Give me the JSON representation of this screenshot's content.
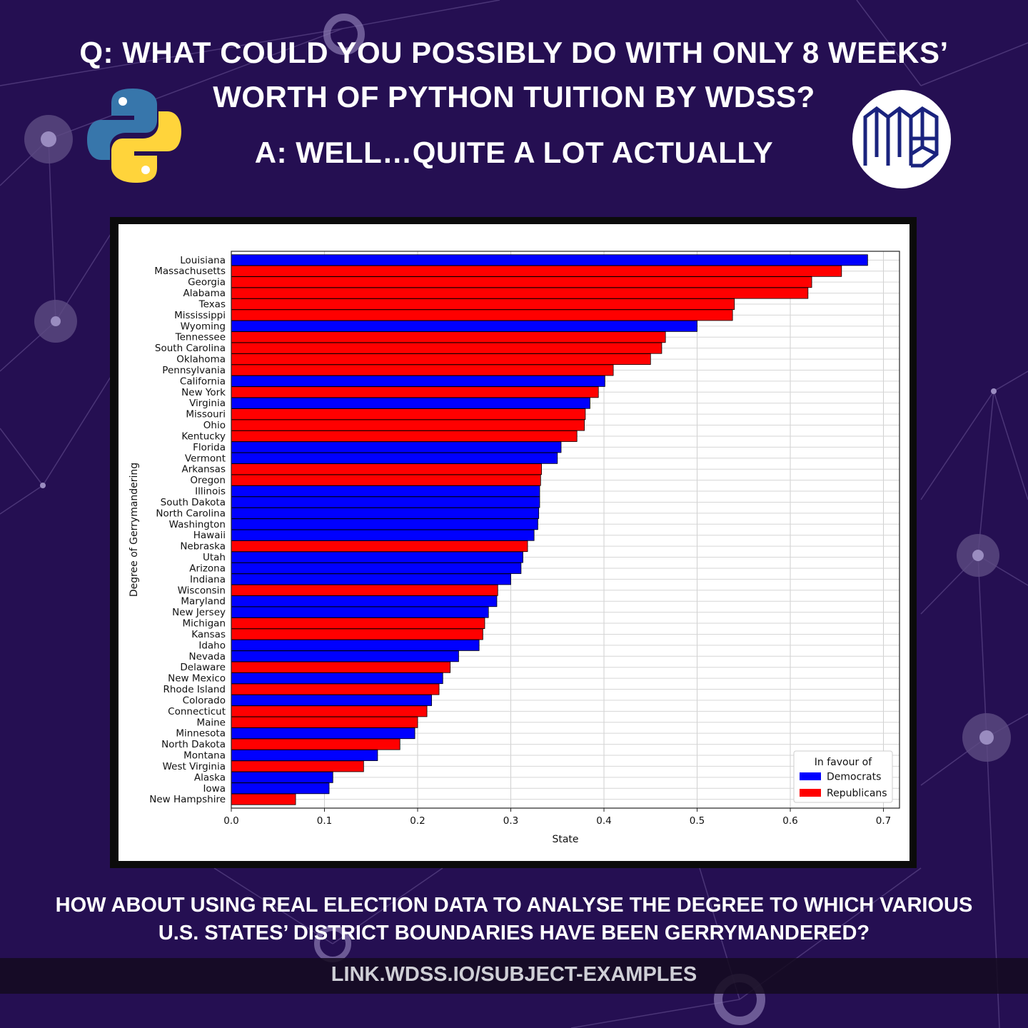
{
  "header": {
    "question_line1": "Q: WHAT COULD YOU POSSIBLY DO WITH ONLY 8 WEEKS’",
    "question_line2": "WORTH OF PYTHON TUITION BY WDSS?",
    "answer": "A: WELL…QUITE A LOT ACTUALLY"
  },
  "footer": {
    "line1": "HOW ABOUT USING REAL ELECTION DATA TO ANALYSE THE DEGREE TO WHICH VARIOUS",
    "line2": "U.S. STATES’ DISTRICT BOUNDARIES HAVE BEEN GERRYMANDERED?",
    "link": "LINK.WDSS.IO/SUBJECT-EXAMPLES"
  },
  "colors": {
    "background": "#250f52",
    "democrats": "#0000ff",
    "republicans": "#ff0000",
    "python_blue": "#3776ab",
    "python_yellow": "#ffd43b",
    "brand_navy": "#1a237e"
  },
  "icons": {
    "python_logo": "python-logo-icon",
    "brand_logo": "wdss-logo-icon"
  },
  "chart_data": {
    "type": "bar",
    "orientation": "horizontal",
    "xlabel": "State",
    "ylabel": "Degree of Gerrymandering",
    "xlim": [
      0,
      0.7
    ],
    "xticks": [
      "0.0",
      "0.1",
      "0.2",
      "0.3",
      "0.4",
      "0.5",
      "0.6",
      "0.7"
    ],
    "grid": true,
    "legend": {
      "title": "In favour of",
      "placement": "lower-right",
      "entries": [
        {
          "name": "Democrats",
          "color": "#0000ff"
        },
        {
          "name": "Republicans",
          "color": "#ff0000"
        }
      ]
    },
    "categories": [
      "Louisiana",
      "Massachusetts",
      "Georgia",
      "Alabama",
      "Texas",
      "Mississippi",
      "Wyoming",
      "Tennessee",
      "South Carolina",
      "Oklahoma",
      "Pennsylvania",
      "California",
      "New York",
      "Virginia",
      "Missouri",
      "Ohio",
      "Kentucky",
      "Florida",
      "Vermont",
      "Arkansas",
      "Oregon",
      "Illinois",
      "South Dakota",
      "North Carolina",
      "Washington",
      "Hawaii",
      "Nebraska",
      "Utah",
      "Arizona",
      "Indiana",
      "Wisconsin",
      "Maryland",
      "New Jersey",
      "Michigan",
      "Kansas",
      "Idaho",
      "Nevada",
      "Delaware",
      "New Mexico",
      "Rhode Island",
      "Colorado",
      "Connecticut",
      "Maine",
      "Minnesota",
      "North Dakota",
      "Montana",
      "West Virginia",
      "Alaska",
      "Iowa",
      "New Hampshire"
    ],
    "values": [
      0.683,
      0.655,
      0.623,
      0.619,
      0.54,
      0.538,
      0.5,
      0.466,
      0.462,
      0.45,
      0.41,
      0.401,
      0.394,
      0.385,
      0.38,
      0.379,
      0.371,
      0.354,
      0.35,
      0.333,
      0.332,
      0.331,
      0.331,
      0.33,
      0.329,
      0.325,
      0.318,
      0.313,
      0.311,
      0.3,
      0.286,
      0.285,
      0.276,
      0.272,
      0.27,
      0.266,
      0.244,
      0.235,
      0.227,
      0.223,
      0.215,
      0.21,
      0.2,
      0.197,
      0.181,
      0.157,
      0.142,
      0.109,
      0.105,
      0.069
    ],
    "party": [
      "D",
      "R",
      "R",
      "R",
      "R",
      "R",
      "D",
      "R",
      "R",
      "R",
      "R",
      "D",
      "R",
      "D",
      "R",
      "R",
      "R",
      "D",
      "D",
      "R",
      "R",
      "D",
      "D",
      "D",
      "D",
      "D",
      "R",
      "D",
      "D",
      "D",
      "R",
      "D",
      "D",
      "R",
      "R",
      "D",
      "D",
      "R",
      "D",
      "R",
      "D",
      "R",
      "R",
      "D",
      "R",
      "D",
      "R",
      "D",
      "D",
      "R"
    ]
  }
}
